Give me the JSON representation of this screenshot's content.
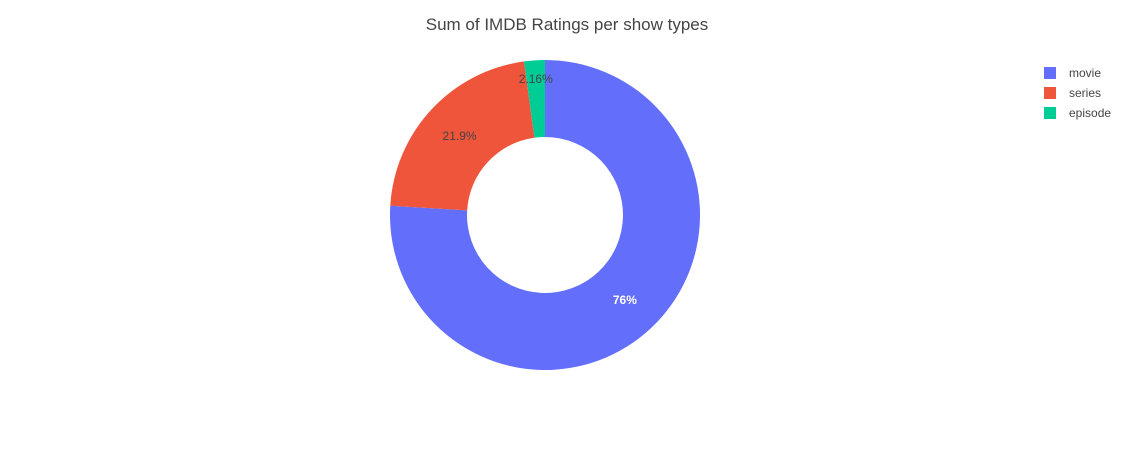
{
  "chart_data": {
    "type": "pie",
    "hole": true,
    "title": "Sum of IMDB Ratings per show types",
    "categories": [
      "movie",
      "series",
      "episode"
    ],
    "values": [
      76,
      21.9,
      2.16
    ],
    "labels": [
      "76%",
      "21.9%",
      "2.16%"
    ],
    "colors": [
      "#636efa",
      "#ef553b",
      "#00cc96"
    ],
    "label_colors": [
      "#ffffff",
      "#444444",
      "#444444"
    ],
    "legend": {
      "placement": "top-right",
      "entries": [
        "movie",
        "series",
        "episode"
      ]
    }
  }
}
